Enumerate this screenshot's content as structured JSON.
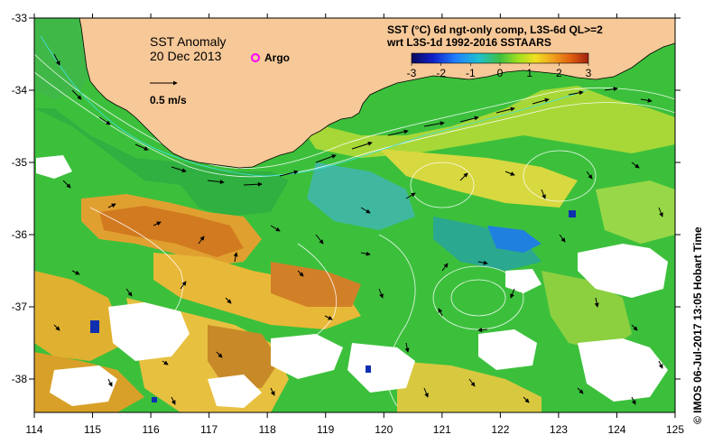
{
  "map": {
    "title": "SST Anomaly",
    "date": "20 Dec 2013",
    "argo_label": "Argo",
    "scale_label": "0.5 m/s",
    "legend_title_line1": "SST (°C) 6d ngt-only comp, L3S-6d QL>=2",
    "legend_title_line2": "wrt L3S-1d 1992-2016 SSTAARS",
    "colorbar_ticks": [
      "-3",
      "-2",
      "-1",
      "0",
      "1",
      "2",
      "3"
    ],
    "colorbar_colors": [
      "#08085a",
      "#1020c8",
      "#2080ff",
      "#20c0d0",
      "#40c040",
      "#a0e020",
      "#f0e020",
      "#f0a020",
      "#e06010",
      "#a02010"
    ],
    "x_ticks": [
      "114",
      "115",
      "116",
      "117",
      "118",
      "119",
      "120",
      "121",
      "122",
      "123",
      "124",
      "125"
    ],
    "y_ticks": [
      "-33",
      "-34",
      "-35",
      "-36",
      "-37",
      "-38"
    ],
    "land_color": "#f7c898",
    "credit": "© IMOS 06-Jul-2017 13:05 Hobart Time"
  }
}
